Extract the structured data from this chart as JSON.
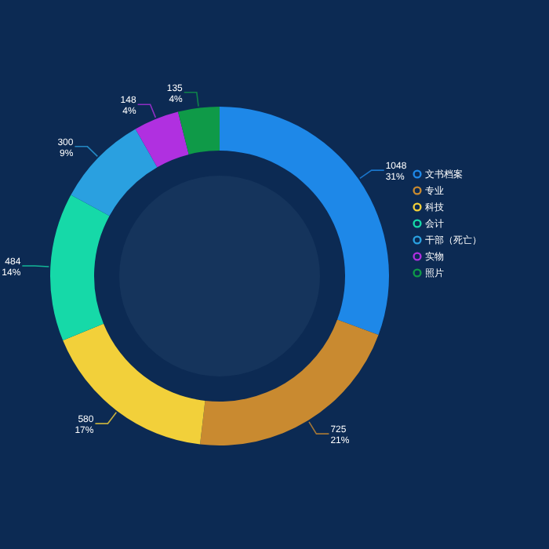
{
  "chart_data": {
    "type": "donut",
    "categories": [
      "文书档案",
      "专业",
      "科技",
      "会计",
      "干部（死亡）",
      "实物",
      "照片"
    ],
    "values": [
      1048,
      725,
      580,
      484,
      300,
      148,
      135
    ],
    "colors": [
      "#1e88e8",
      "#c98a30",
      "#f2d03a",
      "#16d9a8",
      "#2aa0e0",
      "#b030e0",
      "#0f9a48"
    ],
    "value_labels": [
      "1048\n31%",
      "725\n21%",
      "580\n17%",
      "484\n14%",
      "300\n9%",
      "148\n4%",
      "135\n4%"
    ],
    "legend": "right"
  }
}
